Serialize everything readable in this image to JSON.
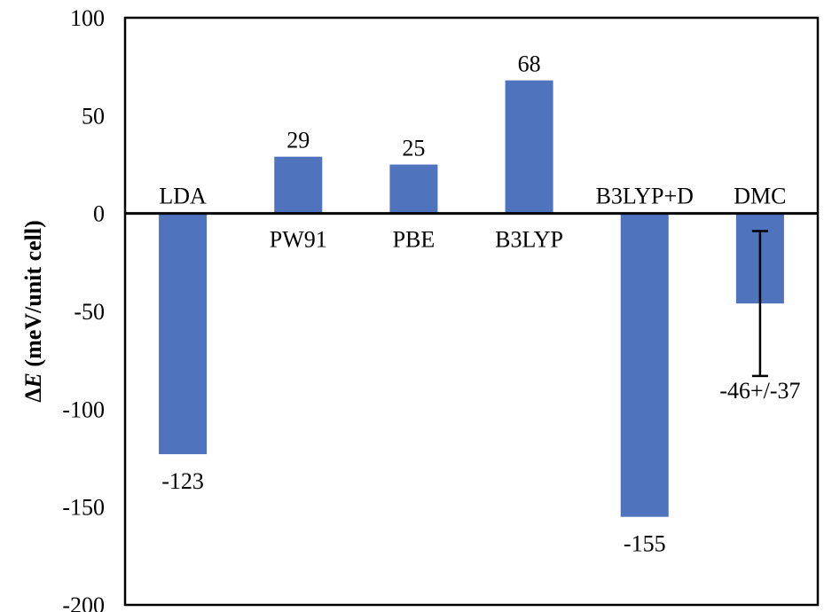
{
  "chart_data": {
    "type": "bar",
    "categories": [
      "LDA",
      "PW91",
      "PBE",
      "B3LYP",
      "B3LYP+D",
      "DMC"
    ],
    "values": [
      -123,
      29,
      25,
      68,
      -155,
      -46
    ],
    "data_labels": [
      "-123",
      "29",
      "25",
      "68",
      "-155",
      "-46+/-37"
    ],
    "error_bars": [
      null,
      null,
      null,
      null,
      null,
      37
    ],
    "ylabel_symbol": "Δ",
    "ylabel_var": "E",
    "ylabel_unit": " (meV/unit cell)",
    "xlabel": "",
    "title": "",
    "ylim": [
      -200,
      100
    ],
    "yticks": [
      100,
      50,
      0,
      -50,
      -100,
      -150,
      -200
    ],
    "bar_color": "#4f73bd",
    "grid": false,
    "legend": "none"
  }
}
